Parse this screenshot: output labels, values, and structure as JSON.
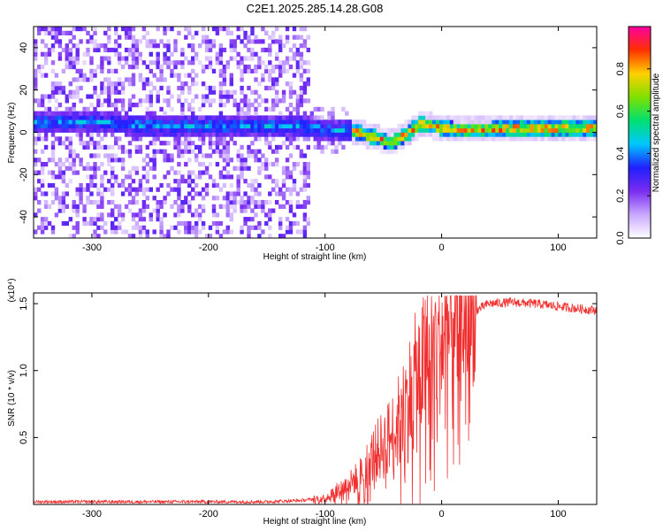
{
  "title": "C2E1.2025.285.14.28.G08",
  "chart_data": [
    {
      "type": "heatmap",
      "xlabel": "Height of straight line (km)",
      "ylabel": "Frequency (Hz)",
      "xlim": [
        -350,
        133
      ],
      "ylim": [
        -50,
        50
      ],
      "x_ticks": [
        -300,
        -200,
        -100,
        0,
        100
      ],
      "y_ticks": [
        -40,
        -20,
        0,
        20,
        40
      ],
      "colorbar": {
        "label": "Normalized spectral amplitude",
        "range": [
          0,
          1
        ],
        "ticks": [
          "0.0",
          "0.2",
          "0.4",
          "0.6",
          "0.8"
        ],
        "colors": [
          "#ffffff",
          "#c9a8ff",
          "#7a2cf0",
          "#2020ff",
          "#00c8ff",
          "#00e070",
          "#80e000",
          "#ffd000",
          "#ff3000",
          "#ff00a0"
        ]
      },
      "ridge": [
        {
          "x": -350,
          "y": 4
        },
        {
          "x": -300,
          "y": 4
        },
        {
          "x": -250,
          "y": 2
        },
        {
          "x": -200,
          "y": 2
        },
        {
          "x": -150,
          "y": 2
        },
        {
          "x": -125,
          "y": 2
        },
        {
          "x": -100,
          "y": 0
        },
        {
          "x": -80,
          "y": 0
        },
        {
          "x": -60,
          "y": -3
        },
        {
          "x": -45,
          "y": -6
        },
        {
          "x": -30,
          "y": -1
        },
        {
          "x": -20,
          "y": 3
        },
        {
          "x": 0,
          "y": 1
        },
        {
          "x": 20,
          "y": 0
        },
        {
          "x": 60,
          "y": 1
        },
        {
          "x": 100,
          "y": 1
        },
        {
          "x": 133,
          "y": 1
        }
      ]
    },
    {
      "type": "line",
      "xlabel": "Height of straight line (km)",
      "ylabel": "SNR (10 * v/v)",
      "y_multiplier": "(x10⁴)",
      "xlim": [
        -350,
        133
      ],
      "ylim": [
        0,
        1.58
      ],
      "x_ticks": [
        -300,
        -200,
        -100,
        0,
        100
      ],
      "y_ticks": [
        "0.5",
        "1.0",
        "1.5"
      ],
      "series": [
        {
          "color": "#f03030",
          "x": [
            -350,
            -300,
            -250,
            -200,
            -150,
            -120,
            -100,
            -90,
            -80,
            -70,
            -60,
            -50,
            -40,
            -30,
            -20,
            -10,
            0,
            10,
            20,
            30,
            40,
            60,
            80,
            100,
            120,
            133
          ],
          "y": [
            0.02,
            0.02,
            0.02,
            0.02,
            0.02,
            0.03,
            0.05,
            0.1,
            0.15,
            0.22,
            0.35,
            0.45,
            0.55,
            0.75,
            0.95,
            1.15,
            1.22,
            1.3,
            1.38,
            1.45,
            1.5,
            1.51,
            1.5,
            1.48,
            1.46,
            1.45
          ]
        }
      ]
    }
  ]
}
